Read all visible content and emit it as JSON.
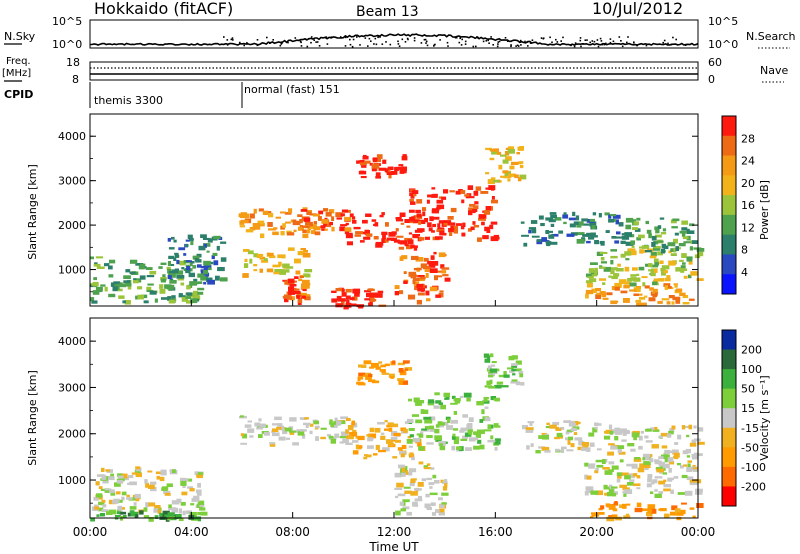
{
  "header": {
    "station": "Hokkaido (fitACF)",
    "beam": "Beam 13",
    "date": "10/Jul/2012"
  },
  "status_panels": {
    "nsky": {
      "label": "N.Sky",
      "ticks": [
        "10^5",
        "10^0"
      ]
    },
    "nsearch": {
      "label": "N.Search",
      "ticks": [
        "10^5",
        "10^0"
      ]
    },
    "freq": {
      "label": "Freq.",
      "unit": "[MHz]",
      "ticks": [
        "18",
        "8"
      ]
    },
    "nave": {
      "label": "Nave",
      "ticks": [
        "60",
        "0"
      ]
    },
    "cpid": {
      "label": "CPID",
      "programs": [
        {
          "name": "themis 3300",
          "start_hour": 0
        },
        {
          "name": "normal (fast) 151",
          "start_hour": 6
        }
      ]
    }
  },
  "colors": {
    "power": [
      "#0a14ff",
      "#2a49c0",
      "#2c7f6a",
      "#4ea24e",
      "#9cc43a",
      "#f2b21a",
      "#f59a14",
      "#ee6a14",
      "#ff1a10"
    ],
    "velocity": [
      "#ff0000",
      "#ff6a00",
      "#ff9a00",
      "#f0b020",
      "#c8c8c8",
      "#7ccf3a",
      "#3cb03c",
      "#2a6a3a",
      "#0a2aa0"
    ],
    "ground_scatter": "#bebebe"
  },
  "chart_data": [
    {
      "type": "heatmap",
      "name": "power-panel",
      "xlabel": "Time UT",
      "ylabel": "Slant Range [km]",
      "xlim": [
        0,
        24
      ],
      "ylim": [
        180,
        4500
      ],
      "x_ticks": [
        "00:00",
        "04:00",
        "08:00",
        "12:00",
        "16:00",
        "20:00",
        "00:00"
      ],
      "y_ticks": [
        1000,
        2000,
        3000,
        4000
      ],
      "colorbar": {
        "label": "Power [dB]",
        "ticks": [
          "4",
          "8",
          "12",
          "16",
          "20",
          "24",
          "28"
        ],
        "range": [
          0,
          30
        ]
      },
      "regions": [
        {
          "t0": 0.0,
          "t1": 4.4,
          "r0": 300,
          "r1": 1300,
          "level": 3
        },
        {
          "t0": 3.0,
          "t1": 5.2,
          "r0": 700,
          "r1": 1800,
          "level": 2
        },
        {
          "t0": 5.8,
          "t1": 9.0,
          "r0": 1800,
          "r1": 2400,
          "level": 6
        },
        {
          "t0": 6.0,
          "t1": 8.5,
          "r0": 900,
          "r1": 1500,
          "level": 5
        },
        {
          "t0": 7.5,
          "t1": 8.5,
          "r0": 300,
          "r1": 900,
          "level": 7
        },
        {
          "t0": 8.0,
          "t1": 10.5,
          "r0": 1900,
          "r1": 2400,
          "level": 7
        },
        {
          "t0": 9.5,
          "t1": 11.5,
          "r0": 200,
          "r1": 600,
          "level": 8
        },
        {
          "t0": 10.0,
          "t1": 13.0,
          "r0": 1500,
          "r1": 2300,
          "level": 8
        },
        {
          "t0": 10.5,
          "t1": 12.5,
          "r0": 3100,
          "r1": 3600,
          "level": 8
        },
        {
          "t0": 12.5,
          "t1": 16.0,
          "r0": 1700,
          "r1": 2900,
          "level": 8
        },
        {
          "t0": 12.0,
          "t1": 14.0,
          "r0": 300,
          "r1": 1400,
          "level": 7
        },
        {
          "t0": 15.5,
          "t1": 17.0,
          "r0": 3000,
          "r1": 3800,
          "level": 5
        },
        {
          "t0": 17.0,
          "t1": 21.0,
          "r0": 1600,
          "r1": 2300,
          "level": 2
        },
        {
          "t0": 19.5,
          "t1": 24.0,
          "r0": 700,
          "r1": 1500,
          "level": 4
        },
        {
          "t0": 19.5,
          "t1": 24.0,
          "r0": 250,
          "r1": 700,
          "level": 6
        },
        {
          "t0": 21.0,
          "t1": 24.0,
          "r0": 1400,
          "r1": 2200,
          "level": 3
        }
      ]
    },
    {
      "type": "heatmap",
      "name": "velocity-panel",
      "xlabel": "Time UT",
      "ylabel": "Slant Range [km]",
      "xlim": [
        0,
        24
      ],
      "ylim": [
        180,
        4500
      ],
      "x_ticks": [
        "00:00",
        "04:00",
        "08:00",
        "12:00",
        "16:00",
        "20:00",
        "00:00"
      ],
      "y_ticks": [
        1000,
        2000,
        3000,
        4000
      ],
      "colorbar": {
        "label": "Velocity [m s⁻¹]",
        "ticks": [
          "200",
          "100",
          "50",
          "15",
          "-15",
          "-50",
          "-100",
          "-200"
        ],
        "range": [
          -250,
          250
        ]
      },
      "regions": [
        {
          "t0": 0.0,
          "t1": 4.4,
          "r0": 300,
          "r1": 1300,
          "level": 4
        },
        {
          "t0": 0.0,
          "t1": 4.4,
          "r0": 180,
          "r1": 350,
          "level": 6
        },
        {
          "t0": 5.8,
          "t1": 10.5,
          "r0": 1800,
          "r1": 2400,
          "level": 4
        },
        {
          "t0": 10.0,
          "t1": 13.0,
          "r0": 1500,
          "r1": 2300,
          "level": 3
        },
        {
          "t0": 10.5,
          "t1": 12.5,
          "r0": 3100,
          "r1": 3600,
          "level": 2
        },
        {
          "t0": 12.5,
          "t1": 16.0,
          "r0": 1700,
          "r1": 2900,
          "level": 5
        },
        {
          "t0": 12.0,
          "t1": 14.0,
          "r0": 300,
          "r1": 1400,
          "level": 4
        },
        {
          "t0": 15.5,
          "t1": 17.0,
          "r0": 3000,
          "r1": 3800,
          "level": 5
        },
        {
          "t0": 17.0,
          "t1": 21.0,
          "r0": 1600,
          "r1": 2300,
          "level": 4
        },
        {
          "t0": 19.5,
          "t1": 24.0,
          "r0": 700,
          "r1": 1500,
          "level": 4
        },
        {
          "t0": 19.5,
          "t1": 24.0,
          "r0": 200,
          "r1": 550,
          "level": 2
        },
        {
          "t0": 21.0,
          "t1": 24.0,
          "r0": 1400,
          "r1": 2200,
          "level": 4
        }
      ]
    }
  ]
}
